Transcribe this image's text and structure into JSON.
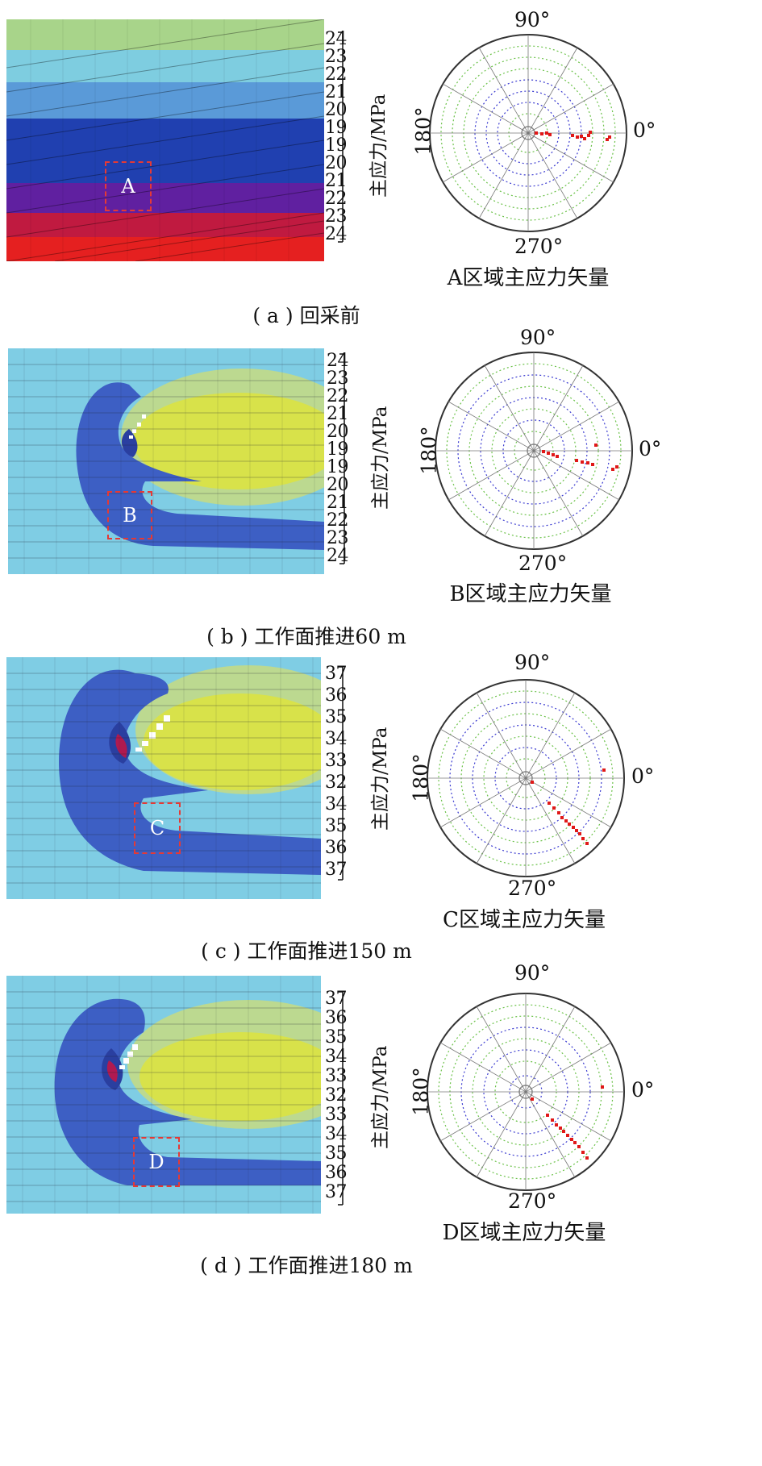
{
  "axis_title": "主应力/MPa",
  "angles": {
    "a90": "90°",
    "a180": "180°",
    "a0": "0°",
    "a270": "270°"
  },
  "panels": [
    {
      "id": "a",
      "caption": "( a ) 回采前",
      "region_label": "A",
      "vector_caption": "A区域主应力矢量",
      "scale_labels": [
        "24",
        "23",
        "22",
        "21",
        "20",
        "19",
        "19",
        "20",
        "21",
        "22",
        "23",
        "24"
      ]
    },
    {
      "id": "b",
      "caption": "( b ) 工作面推进60 m",
      "region_label": "B",
      "vector_caption": "B区域主应力矢量",
      "scale_labels": [
        "24",
        "23",
        "22",
        "21",
        "20",
        "19",
        "19",
        "20",
        "21",
        "22",
        "23",
        "24"
      ]
    },
    {
      "id": "c",
      "caption": "( c ) 工作面推进150 m",
      "region_label": "C",
      "vector_caption": "C区域主应力矢量",
      "scale_labels": [
        "37",
        "36",
        "35",
        "34",
        "33",
        "32",
        "34",
        "35",
        "36",
        "37"
      ]
    },
    {
      "id": "d",
      "caption": "( d ) 工作面推进180 m",
      "region_label": "D",
      "vector_caption": "D区域主应力矢量",
      "scale_labels": [
        "37",
        "36",
        "35",
        "34",
        "33",
        "32",
        "33",
        "34",
        "35",
        "36",
        "37"
      ]
    }
  ],
  "colors": {
    "red": "#e02020",
    "purple": "#6a1fa0",
    "dark_blue": "#1f3fb0",
    "mid_blue": "#3c78d0",
    "light_blue": "#7ec8e8",
    "cyan_bg": "#7fd0e6",
    "yellow": "#d6e24a",
    "green": "#a8d48a",
    "blob_blue": "#3d5fc4",
    "vector_red": "#e01818",
    "circle_green": "#6cc24a",
    "circle_blue": "#3a3ad0"
  }
}
